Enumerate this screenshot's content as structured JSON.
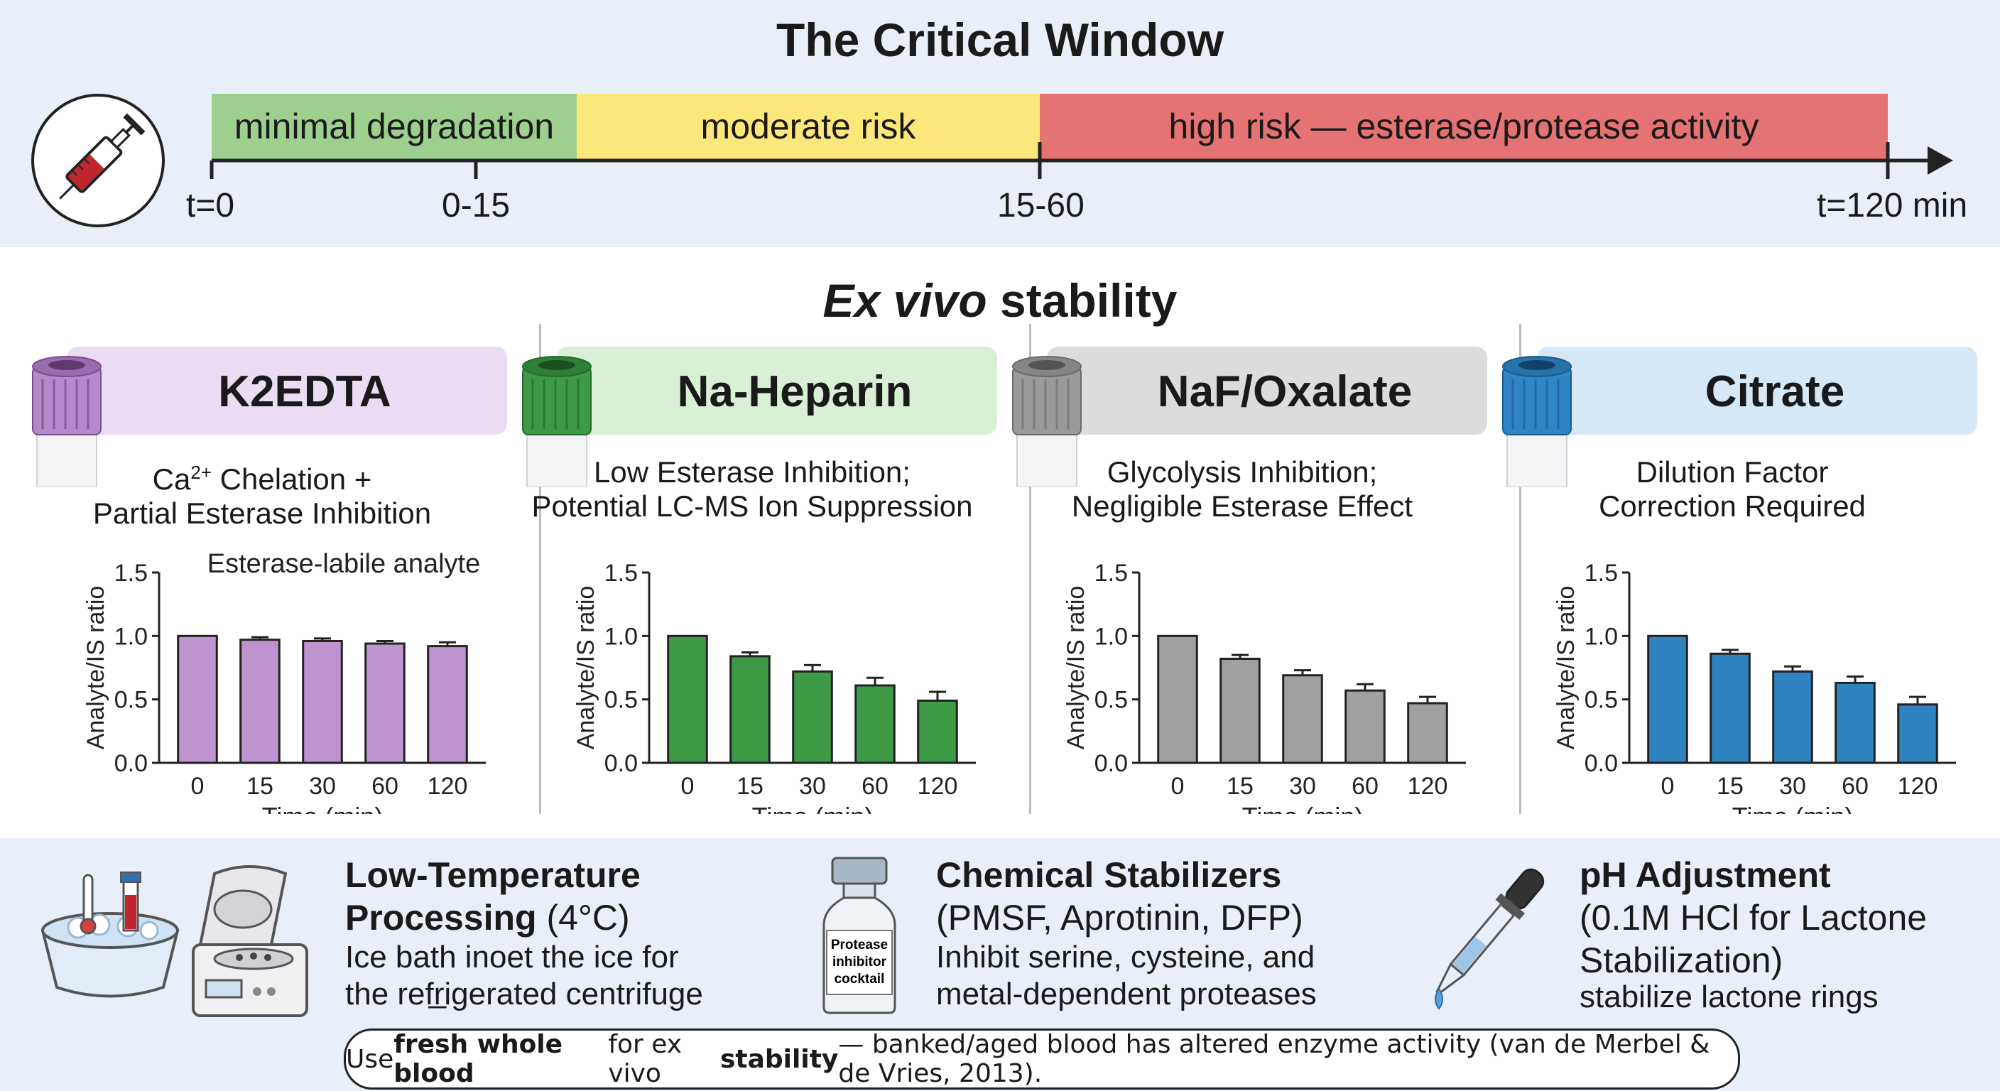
{
  "header": {
    "title": "The Critical Window",
    "segments": [
      {
        "label": "minimal degradation",
        "color": "#9dd08f"
      },
      {
        "label": "moderate risk",
        "color": "#fbe77a"
      },
      {
        "label": "high risk — esterase/protease activity",
        "color": "#e57373"
      }
    ],
    "ticks": [
      "t=0",
      "0-15",
      "15-60",
      "t=120 min"
    ]
  },
  "section": {
    "subtitle_italic": "Ex vivo",
    "subtitle_rest": " stability"
  },
  "panels": [
    {
      "name": "K2EDTA",
      "desc_line1_pre": "Ca",
      "desc_line1_sup": "2+",
      "desc_line1_post": " Chelation +",
      "desc_line2": "Partial Esterase Inhibition",
      "cap_color": "#b689c9",
      "header_bg": "#eadcf2",
      "bar_color": "#be93cf",
      "annotation": "Esterase-labile analyte"
    },
    {
      "name": "Na-Heparin",
      "desc_line1": "Low Esterase Inhibition;",
      "desc_line2": "Potential LC-MS Ion Suppression",
      "cap_color": "#3f9a47",
      "header_bg": "#d9efd6",
      "bar_color": "#3d9b46"
    },
    {
      "name": "NaF/Oxalate",
      "desc_line1": "Glycolysis Inhibition;",
      "desc_line2": "Negligible Esterase Effect",
      "cap_color": "#9a9a9a",
      "header_bg": "#dcdcdc",
      "bar_color": "#a0a0a0"
    },
    {
      "name": "Citrate",
      "desc_line1": "Dilution Factor",
      "desc_line2": "Correction Required",
      "cap_color": "#2f86c6",
      "header_bg": "#d6e7f5",
      "bar_color": "#2f83c0"
    }
  ],
  "chart_data": [
    {
      "type": "bar",
      "categories": [
        "0",
        "15",
        "30",
        "60",
        "120"
      ],
      "values": [
        1.0,
        0.97,
        0.96,
        0.94,
        0.92
      ],
      "errors": [
        0,
        0.02,
        0.02,
        0.02,
        0.03
      ],
      "xlabel": "Time (min)",
      "ylabel": "Analyte/IS ratio",
      "ylim": [
        0,
        1.5
      ],
      "yticks": [
        "0.0",
        "0.5",
        "1.0",
        "1.5"
      ]
    },
    {
      "type": "bar",
      "categories": [
        "0",
        "15",
        "30",
        "60",
        "120"
      ],
      "values": [
        1.0,
        0.84,
        0.72,
        0.61,
        0.49
      ],
      "errors": [
        0,
        0.03,
        0.05,
        0.06,
        0.07
      ],
      "xlabel": "Time (min)",
      "ylabel": "Analyte/IS ratio",
      "ylim": [
        0,
        1.5
      ],
      "yticks": [
        "0.0",
        "0.5",
        "1.0",
        "1.5"
      ]
    },
    {
      "type": "bar",
      "categories": [
        "0",
        "15",
        "30",
        "60",
        "120"
      ],
      "values": [
        1.0,
        0.82,
        0.69,
        0.57,
        0.47
      ],
      "errors": [
        0,
        0.03,
        0.04,
        0.05,
        0.05
      ],
      "xlabel": "Time (min)",
      "ylabel": "Analyte/IS ratio",
      "ylim": [
        0,
        1.5
      ],
      "yticks": [
        "0.0",
        "0.5",
        "1.0",
        "1.5"
      ]
    },
    {
      "type": "bar",
      "categories": [
        "0",
        "15",
        "30",
        "60",
        "120"
      ],
      "values": [
        1.0,
        0.86,
        0.72,
        0.63,
        0.46
      ],
      "errors": [
        0,
        0.03,
        0.04,
        0.05,
        0.06
      ],
      "xlabel": "Time (min)",
      "ylabel": "Analyte/IS ratio",
      "ylim": [
        0,
        1.5
      ],
      "yticks": [
        "0.0",
        "0.5",
        "1.0",
        "1.5"
      ]
    }
  ],
  "footer": {
    "items": [
      {
        "title": "Low-Temperature Processing",
        "title_suffix": " (4°C)",
        "body1": "Ice bath inoet the ice for",
        "body2": "the refr̲igerated centrifuge"
      },
      {
        "title": "Chemical Stabilizers",
        "title2": "(PMSF, Aprotinin, DFP)",
        "body1": "Inhibit serine, cysteine, and",
        "body2": "metal-dependent proteases"
      },
      {
        "title": "pH Adjustment",
        "title2": "(0.1M HCl for Lactone",
        "title3": "Stabilization)",
        "body1": "stabilize lactone rings"
      }
    ],
    "vial_label": [
      "Protease",
      "inhibitor",
      "cocktail"
    ],
    "note_pre": "Use ",
    "note_b1": "fresh whole blood",
    "note_mid": " for ex vivo ",
    "note_b2": "stability",
    "note_post": " — banked/aged blood has altered enzyme activity (van de Merbel & de Vries, 2013)."
  }
}
